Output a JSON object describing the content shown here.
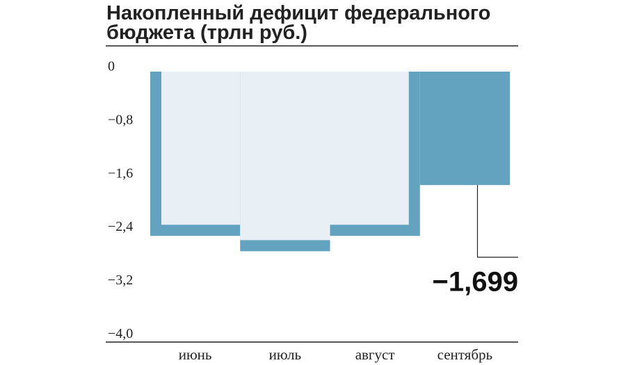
{
  "chart_data": {
    "type": "step-area",
    "title": [
      "Накопленный дефицит федерального",
      "бюджета (трлн руб.)"
    ],
    "categories": [
      "июнь",
      "июль",
      "август",
      "сентябрь"
    ],
    "values": [
      -2.46,
      -2.69,
      -2.46,
      -1.699
    ],
    "value_labels": [
      null,
      null,
      null,
      "−1,699"
    ],
    "colors": [
      "#64a3bf",
      "#64a3bf",
      "#64a3bf",
      "#64a3bf"
    ],
    "fill_color": "#e8eff5",
    "ylim": [
      -4.05,
      0
    ],
    "yticks": [
      0,
      {
        "value": -0.8,
        "label": "−0,8"
      },
      {
        "value": -1.6,
        "label": "−1,6"
      },
      {
        "value": -2.4,
        "label": "−2,4"
      },
      {
        "value": -3.2,
        "label": "−3,2"
      },
      {
        "value": -4.0,
        "label": "−4,0"
      }
    ]
  }
}
